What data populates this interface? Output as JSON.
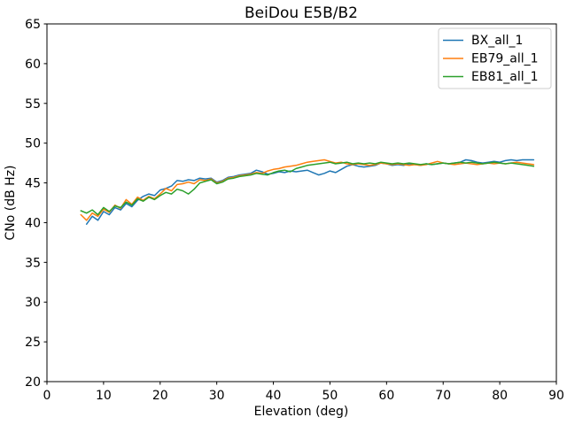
{
  "chart_data": {
    "type": "line",
    "title": "BeiDou E5B/B2",
    "xlabel": "Elevation (deg)",
    "ylabel": "CNo (dB Hz)",
    "xlim": [
      0,
      90
    ],
    "ylim": [
      20,
      65
    ],
    "xticks": [
      0,
      10,
      20,
      30,
      40,
      50,
      60,
      70,
      80,
      90
    ],
    "yticks": [
      20,
      25,
      30,
      35,
      40,
      45,
      50,
      55,
      60,
      65
    ],
    "grid": false,
    "legend_position": "upper right",
    "background_color": "#ffffff",
    "axis_color": "#000000",
    "legend_border_color": "#cccccc",
    "x": [
      6,
      7,
      8,
      9,
      10,
      11,
      12,
      13,
      14,
      15,
      16,
      17,
      18,
      19,
      20,
      21,
      22,
      23,
      24,
      25,
      26,
      27,
      28,
      29,
      30,
      31,
      32,
      33,
      34,
      35,
      36,
      37,
      38,
      39,
      40,
      41,
      42,
      43,
      44,
      45,
      46,
      47,
      48,
      49,
      50,
      51,
      52,
      53,
      54,
      55,
      56,
      57,
      58,
      59,
      60,
      61,
      62,
      63,
      64,
      65,
      66,
      67,
      68,
      69,
      70,
      71,
      72,
      73,
      74,
      75,
      76,
      77,
      78,
      79,
      80,
      81,
      82,
      83,
      84,
      85,
      86
    ],
    "series": [
      {
        "name": "BX_all_1",
        "color": "#1f77b4",
        "values": [
          null,
          39.8,
          40.8,
          40.3,
          41.4,
          41.0,
          41.9,
          41.6,
          42.4,
          42.0,
          42.8,
          43.3,
          43.6,
          43.4,
          44.1,
          44.3,
          44.6,
          45.3,
          45.2,
          45.4,
          45.3,
          45.6,
          45.5,
          45.6,
          45.1,
          45.3,
          45.7,
          45.8,
          46.0,
          46.1,
          46.2,
          46.6,
          46.4,
          46.1,
          46.2,
          46.4,
          46.3,
          46.5,
          46.4,
          46.5,
          46.6,
          46.3,
          46.0,
          46.2,
          46.5,
          46.3,
          46.7,
          47.1,
          47.3,
          47.1,
          47.0,
          47.1,
          47.2,
          47.5,
          47.4,
          47.2,
          47.3,
          47.2,
          47.4,
          47.3,
          47.2,
          47.4,
          47.3,
          47.4,
          47.5,
          47.4,
          47.5,
          47.6,
          47.9,
          47.8,
          47.6,
          47.5,
          47.6,
          47.7,
          47.6,
          47.8,
          47.9,
          47.8,
          47.9,
          47.9,
          47.9
        ]
      },
      {
        "name": "EB79_all_1",
        "color": "#ff7f0e",
        "values": [
          41.0,
          40.3,
          41.2,
          40.8,
          41.7,
          41.3,
          42.2,
          41.8,
          42.9,
          42.3,
          43.2,
          42.8,
          43.3,
          43.0,
          43.6,
          44.3,
          44.0,
          44.8,
          44.9,
          45.1,
          44.9,
          45.4,
          45.3,
          45.5,
          45.0,
          45.2,
          45.6,
          45.7,
          45.9,
          46.0,
          46.1,
          46.3,
          46.2,
          46.5,
          46.7,
          46.8,
          47.0,
          47.1,
          47.2,
          47.4,
          47.6,
          47.7,
          47.8,
          47.9,
          47.7,
          47.5,
          47.6,
          47.4,
          47.3,
          47.4,
          47.3,
          47.2,
          47.3,
          47.5,
          47.4,
          47.3,
          47.4,
          47.3,
          47.2,
          47.3,
          47.2,
          47.3,
          47.5,
          47.7,
          47.5,
          47.4,
          47.3,
          47.4,
          47.5,
          47.4,
          47.3,
          47.4,
          47.5,
          47.4,
          47.5,
          47.4,
          47.5,
          47.6,
          47.5,
          47.4,
          47.3
        ]
      },
      {
        "name": "EB81_all_1",
        "color": "#2ca02c",
        "values": [
          41.5,
          41.2,
          41.6,
          41.0,
          41.9,
          41.4,
          42.1,
          41.9,
          42.6,
          42.2,
          43.0,
          42.7,
          43.2,
          42.9,
          43.4,
          43.8,
          43.6,
          44.2,
          44.0,
          43.6,
          44.2,
          45.0,
          45.2,
          45.4,
          44.9,
          45.1,
          45.5,
          45.6,
          45.8,
          45.9,
          46.0,
          46.2,
          46.1,
          46.0,
          46.3,
          46.5,
          46.6,
          46.4,
          46.8,
          47.0,
          47.2,
          47.3,
          47.4,
          47.5,
          47.6,
          47.4,
          47.5,
          47.6,
          47.4,
          47.5,
          47.4,
          47.5,
          47.4,
          47.6,
          47.5,
          47.4,
          47.5,
          47.4,
          47.5,
          47.4,
          47.3,
          47.4,
          47.3,
          47.4,
          47.5,
          47.4,
          47.5,
          47.6,
          47.5,
          47.6,
          47.5,
          47.4,
          47.5,
          47.6,
          47.5,
          47.4,
          47.5,
          47.4,
          47.3,
          47.2,
          47.1
        ]
      }
    ]
  }
}
